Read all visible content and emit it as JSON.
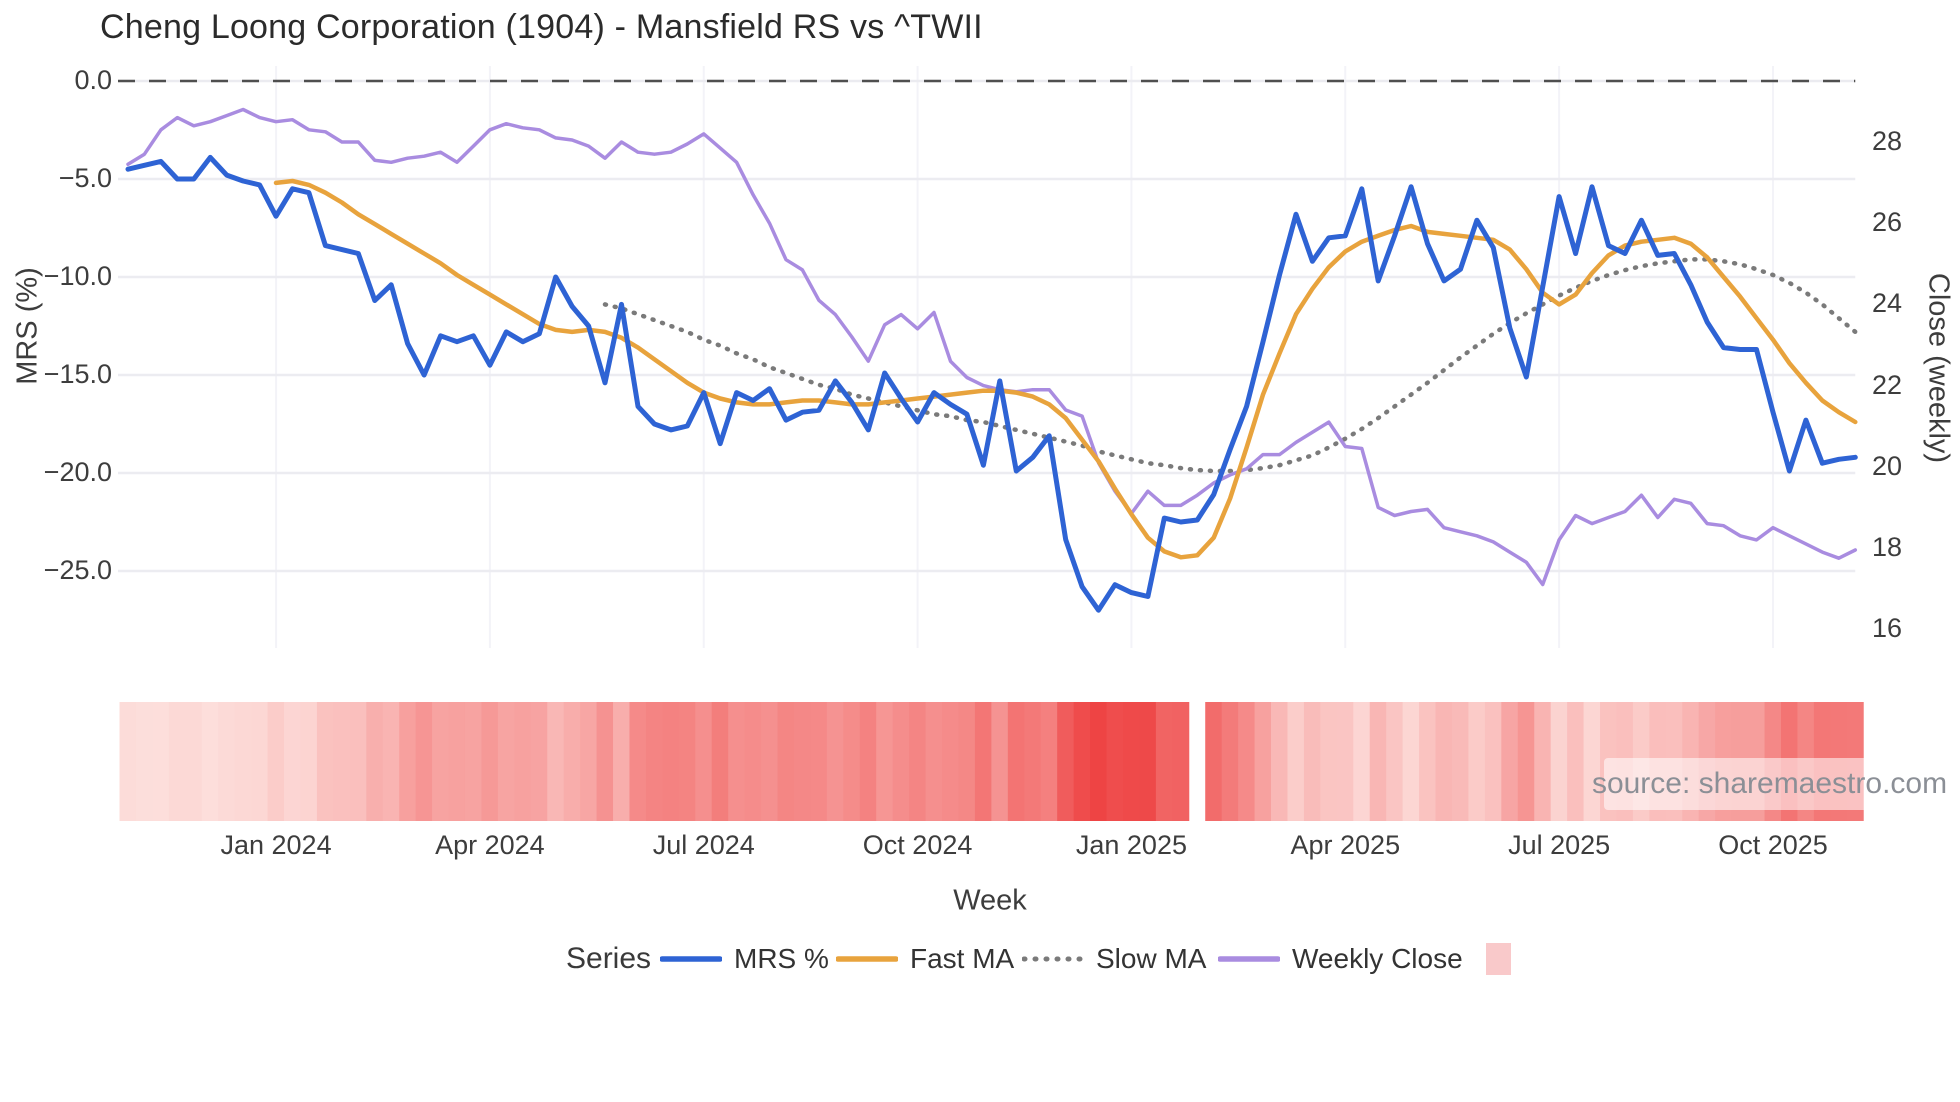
{
  "title": "Cheng Loong Corporation (1904) - Mansfield RS vs ^TWII",
  "source_watermark": "source: sharemaestro.com",
  "axes": {
    "left": {
      "label": "MRS (%)",
      "ticks": [
        {
          "label": "0.0",
          "value": 0
        },
        {
          "label": "−5.0",
          "value": -5
        },
        {
          "label": "−10.0",
          "value": -10
        },
        {
          "label": "−15.0",
          "value": -15
        },
        {
          "label": "−20.0",
          "value": -20
        },
        {
          "label": "−25.0",
          "value": -25
        }
      ]
    },
    "right": {
      "label": "Close (weekly)",
      "ticks": [
        {
          "label": "28",
          "value": 28
        },
        {
          "label": "26",
          "value": 26
        },
        {
          "label": "24",
          "value": 24
        },
        {
          "label": "22",
          "value": 22
        },
        {
          "label": "20",
          "value": 20
        },
        {
          "label": "18",
          "value": 18
        },
        {
          "label": "16",
          "value": 16
        }
      ]
    },
    "x": {
      "label": "Week",
      "ticks": [
        {
          "label": "Jan 2024",
          "week_index": 9
        },
        {
          "label": "Apr 2024",
          "week_index": 22
        },
        {
          "label": "Jul 2024",
          "week_index": 35
        },
        {
          "label": "Oct 2024",
          "week_index": 48
        },
        {
          "label": "Jan 2025",
          "week_index": 61
        },
        {
          "label": "Apr 2025",
          "week_index": 74
        },
        {
          "label": "Jul 2025",
          "week_index": 87
        },
        {
          "label": "Oct 2025",
          "week_index": 100
        }
      ]
    }
  },
  "legend": {
    "title": "Series",
    "items": [
      {
        "label": "MRS %",
        "color": "#2e63d4",
        "style": "solid"
      },
      {
        "label": "Fast MA",
        "color": "#e8a33d",
        "style": "solid"
      },
      {
        "label": "Slow MA",
        "color": "#7a7a7a",
        "style": "dotted"
      },
      {
        "label": "Weekly Close",
        "color": "#a98ce0",
        "style": "solid"
      }
    ],
    "heatmap_swatch_color": "#f9c9ca"
  },
  "chart_data": {
    "type": "line",
    "title": "Cheng Loong Corporation (1904) - Mansfield RS vs ^TWII",
    "xlabel": "Week",
    "x_unit": "weekly",
    "start_week": "2023-10-30",
    "n_weeks": 106,
    "left_axis_label": "MRS (%)",
    "right_axis_label": "Close (weekly)",
    "left_ylim": [
      -29.5,
      0.9
    ],
    "right_ylim": [
      15.3,
      29.9
    ],
    "grid": "light horizontal gridlines; dark dashed reference line at 0.0 on left axis",
    "legend_position": "bottom",
    "series": [
      {
        "name": "MRS %",
        "axis": "left",
        "color": "#2e63d4",
        "style": "solid",
        "width": 5,
        "start_index": 0,
        "values": [
          -4.5,
          -4.3,
          -4.1,
          -5.0,
          -5.0,
          -3.9,
          -4.8,
          -5.1,
          -5.3,
          -6.9,
          -5.5,
          -5.7,
          -8.4,
          -8.6,
          -8.8,
          -11.2,
          -10.4,
          -13.4,
          -15.0,
          -13.0,
          -13.3,
          -13.0,
          -14.5,
          -12.8,
          -13.3,
          -12.9,
          -10.0,
          -11.5,
          -12.5,
          -15.4,
          -11.4,
          -16.6,
          -17.5,
          -17.8,
          -17.6,
          -15.9,
          -18.5,
          -15.9,
          -16.3,
          -15.7,
          -17.3,
          -16.9,
          -16.8,
          -15.3,
          -16.4,
          -17.8,
          -14.9,
          -16.2,
          -17.4,
          -15.9,
          -16.5,
          -17.0,
          -19.6,
          -15.3,
          -19.9,
          -19.2,
          -18.1,
          -23.4,
          -25.8,
          -27.0,
          -25.7,
          -26.1,
          -26.3,
          -22.3,
          -22.5,
          -22.4,
          -21.1,
          -18.8,
          -16.6,
          -13.3,
          -9.9,
          -6.8,
          -9.2,
          -8.0,
          -7.9,
          -5.5,
          -10.2,
          -7.9,
          -5.4,
          -8.3,
          -10.2,
          -9.6,
          -7.1,
          -8.5,
          -12.6,
          -15.1,
          -10.5,
          -5.9,
          -8.8,
          -5.4,
          -8.4,
          -8.8,
          -7.1,
          -8.9,
          -8.8,
          -10.4,
          -12.3,
          -13.6,
          -13.7,
          -13.7,
          -16.9,
          -19.9,
          -17.3,
          -19.5,
          -19.3,
          -19.2
        ]
      },
      {
        "name": "Fast MA",
        "axis": "left",
        "color": "#e8a33d",
        "style": "solid",
        "width": 4.5,
        "start_index": 9,
        "values": [
          -5.2,
          -5.1,
          -5.3,
          -5.7,
          -6.2,
          -6.8,
          -7.3,
          -7.8,
          -8.3,
          -8.8,
          -9.3,
          -9.9,
          -10.4,
          -10.9,
          -11.4,
          -11.9,
          -12.4,
          -12.7,
          -12.8,
          -12.7,
          -12.8,
          -13.1,
          -13.6,
          -14.2,
          -14.8,
          -15.4,
          -15.9,
          -16.2,
          -16.4,
          -16.5,
          -16.5,
          -16.4,
          -16.3,
          -16.3,
          -16.4,
          -16.5,
          -16.5,
          -16.4,
          -16.3,
          -16.2,
          -16.1,
          -16.0,
          -15.9,
          -15.8,
          -15.8,
          -15.9,
          -16.1,
          -16.5,
          -17.2,
          -18.3,
          -19.4,
          -20.8,
          -22.1,
          -23.3,
          -24.0,
          -24.3,
          -24.2,
          -23.3,
          -21.3,
          -18.7,
          -16.0,
          -13.9,
          -11.9,
          -10.6,
          -9.5,
          -8.7,
          -8.2,
          -7.9,
          -7.6,
          -7.4,
          -7.7,
          -7.8,
          -7.9,
          -8.0,
          -8.1,
          -8.6,
          -9.6,
          -10.8,
          -11.4,
          -10.9,
          -9.8,
          -8.9,
          -8.4,
          -8.2,
          -8.1,
          -8.0,
          -8.3,
          -9.0,
          -10.0,
          -11.0,
          -12.1,
          -13.2,
          -14.4,
          -15.4,
          -16.3,
          -16.9,
          -17.4
        ]
      },
      {
        "name": "Slow MA",
        "axis": "left",
        "color": "#7a7a7a",
        "style": "dotted",
        "width": 4.5,
        "start_index": 29,
        "values": [
          -11.4,
          -11.6,
          -11.9,
          -12.2,
          -12.5,
          -12.8,
          -13.2,
          -13.5,
          -13.9,
          -14.2,
          -14.6,
          -14.9,
          -15.2,
          -15.5,
          -15.7,
          -16.0,
          -16.2,
          -16.4,
          -16.6,
          -16.8,
          -17.0,
          -17.1,
          -17.3,
          -17.4,
          -17.6,
          -17.8,
          -18.0,
          -18.2,
          -18.4,
          -18.6,
          -18.9,
          -19.1,
          -19.3,
          -19.5,
          -19.6,
          -19.75,
          -19.85,
          -19.9,
          -19.9,
          -19.85,
          -19.75,
          -19.6,
          -19.35,
          -19.1,
          -18.7,
          -18.25,
          -17.75,
          -17.2,
          -16.6,
          -16.0,
          -15.4,
          -14.75,
          -14.1,
          -13.5,
          -12.9,
          -12.35,
          -11.85,
          -11.4,
          -10.95,
          -10.55,
          -10.2,
          -9.9,
          -9.65,
          -9.45,
          -9.3,
          -9.2,
          -9.1,
          -9.1,
          -9.2,
          -9.35,
          -9.6,
          -9.9,
          -10.3,
          -10.8,
          -11.4,
          -12.1,
          -12.8
        ]
      },
      {
        "name": "Weekly Close",
        "axis": "right",
        "color": "#a98ce0",
        "style": "solid",
        "width": 3.5,
        "start_index": 0,
        "values": [
          27.45,
          27.7,
          28.3,
          28.6,
          28.4,
          28.5,
          28.65,
          28.8,
          28.6,
          28.5,
          28.55,
          28.3,
          28.25,
          28.0,
          28.0,
          27.55,
          27.5,
          27.6,
          27.65,
          27.75,
          27.5,
          27.9,
          28.3,
          28.45,
          28.35,
          28.3,
          28.1,
          28.05,
          27.9,
          27.6,
          28.0,
          27.75,
          27.7,
          27.75,
          27.95,
          28.2,
          27.85,
          27.5,
          26.7,
          26.0,
          25.1,
          24.85,
          24.1,
          23.75,
          23.2,
          22.6,
          23.5,
          23.75,
          23.4,
          23.8,
          22.6,
          22.2,
          22.0,
          21.9,
          21.85,
          21.9,
          21.9,
          21.4,
          21.25,
          20.1,
          19.4,
          18.85,
          19.4,
          19.05,
          19.05,
          19.3,
          19.6,
          19.8,
          19.95,
          20.3,
          20.3,
          20.6,
          20.85,
          21.1,
          20.5,
          20.45,
          19.0,
          18.8,
          18.9,
          18.95,
          18.5,
          18.4,
          18.3,
          18.15,
          17.9,
          17.65,
          17.1,
          18.2,
          18.8,
          18.6,
          18.75,
          18.9,
          19.3,
          18.75,
          19.2,
          19.1,
          18.6,
          18.55,
          18.3,
          18.2,
          18.5,
          18.3,
          18.1,
          17.9,
          17.75,
          17.95
        ]
      }
    ],
    "heatmap_strip": {
      "encodes": "MRS % magnitude per week (light pink = shallow negative, deep red = deep negative)",
      "segments": [
        [
          0,
          64
        ],
        [
          66,
          105
        ]
      ],
      "gap_week": 65,
      "color_min": "#fde3e0",
      "color_max": "#ee4444",
      "value_domain": [
        -3.5,
        -27.0
      ]
    }
  }
}
